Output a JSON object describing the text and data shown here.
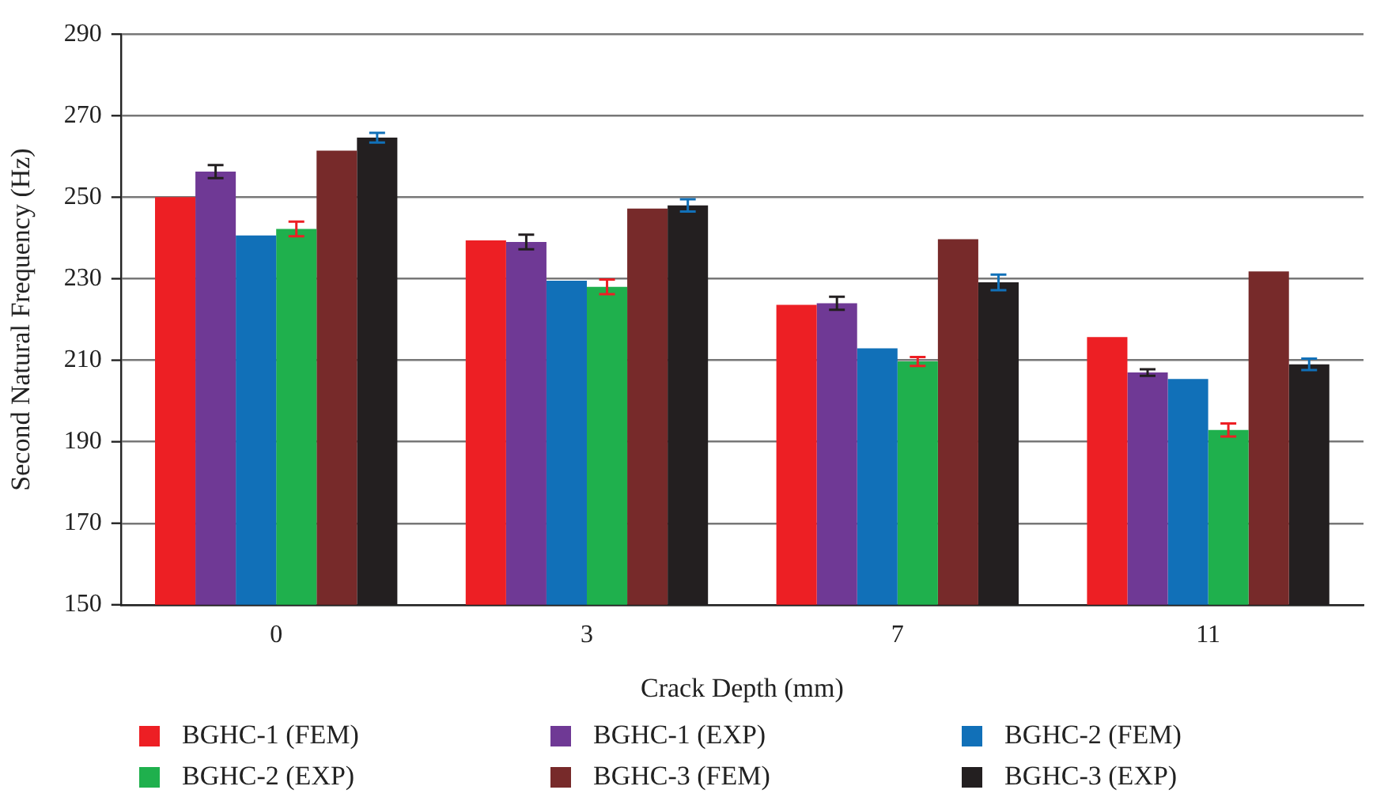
{
  "chart_data": {
    "type": "bar",
    "xlabel": "Crack Depth (mm)",
    "ylabel": "Second Natural Frequency (Hz)",
    "categories": [
      "0",
      "3",
      "7",
      "11"
    ],
    "series": [
      {
        "name": "BGHC-1 (FEM)",
        "color": "#ed1f24",
        "values": [
          250.0,
          239.4,
          223.6,
          215.7
        ]
      },
      {
        "name": "BGHC-1 (EXP)",
        "color": "#6f3995",
        "values": [
          256.3,
          239.0,
          224.0,
          207.0
        ],
        "errors": [
          1.6,
          1.8,
          1.6,
          0.8
        ]
      },
      {
        "name": "BGHC-2 (FEM)",
        "color": "#1170b8",
        "values": [
          240.6,
          229.5,
          212.9,
          205.4
        ]
      },
      {
        "name": "BGHC-2 (EXP)",
        "color": "#1fb04d",
        "values": [
          242.2,
          228.0,
          209.7,
          192.9
        ],
        "errors": [
          1.8,
          1.8,
          1.1,
          1.6
        ]
      },
      {
        "name": "BGHC-3 (FEM)",
        "color": "#772a2a",
        "values": [
          261.4,
          247.2,
          239.7,
          231.8
        ]
      },
      {
        "name": "BGHC-3 (EXP)",
        "color": "#231f20",
        "values": [
          264.6,
          248.0,
          229.1,
          209.0
        ],
        "errors": [
          1.2,
          1.5,
          1.9,
          1.4
        ]
      }
    ],
    "ylim": [
      150,
      290
    ],
    "yticks": [
      150,
      170,
      190,
      210,
      230,
      250,
      270,
      290
    ],
    "grid": "y",
    "legend": "bottom"
  }
}
